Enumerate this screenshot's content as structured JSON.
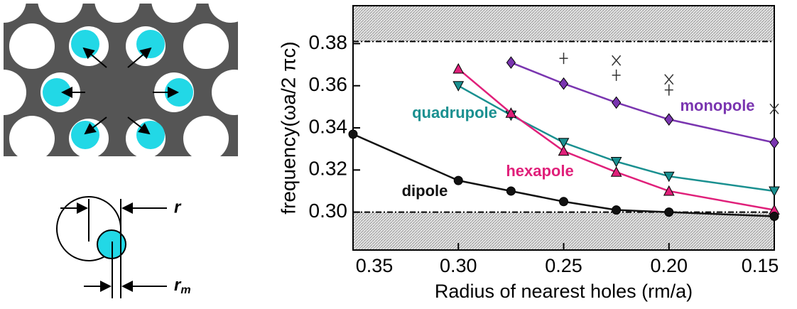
{
  "diagram": {
    "r_label": "r",
    "rm_label": "r",
    "rm_sub": "m"
  },
  "chart_data": {
    "type": "line",
    "xlabel": "Radius of nearest holes (rm/a)",
    "ylabel": "frequency(ωa/2 πc)",
    "xlim": [
      0.35,
      0.15
    ],
    "ylim": [
      0.282,
      0.398
    ],
    "xticks": [
      0.35,
      {
        "value": 0.3,
        "label": "0.30"
      },
      0.25,
      {
        "value": 0.2,
        "label": "0.20"
      },
      0.15
    ],
    "yticks": [
      {
        "value": 0.3,
        "label": "0.30"
      },
      0.32,
      0.34,
      0.36,
      0.38
    ],
    "gap_edges": [
      0.3,
      0.381
    ],
    "series": [
      {
        "name": "monopole",
        "color": "#7a35b0",
        "marker": "diamond",
        "x": [
          0.275,
          0.25,
          0.225,
          0.2,
          0.15
        ],
        "values": [
          0.371,
          0.361,
          0.352,
          0.344,
          0.333
        ]
      },
      {
        "name": "quadrupole",
        "color": "#1a9090",
        "marker": "tri-down",
        "x": [
          0.3,
          0.275,
          0.25,
          0.225,
          0.2,
          0.15
        ],
        "values": [
          0.36,
          0.346,
          0.333,
          0.324,
          0.317,
          0.31
        ]
      },
      {
        "name": "hexapole",
        "color": "#e0207a",
        "marker": "tri-up",
        "x": [
          0.3,
          0.275,
          0.25,
          0.225,
          0.2,
          0.15
        ],
        "values": [
          0.368,
          0.347,
          0.329,
          0.319,
          0.31,
          0.301
        ]
      },
      {
        "name": "dipole",
        "color": "#111111",
        "marker": "circle",
        "x": [
          0.35,
          0.3,
          0.275,
          0.25,
          0.225,
          0.2,
          0.15
        ],
        "values": [
          0.337,
          0.315,
          0.31,
          0.305,
          0.301,
          0.3,
          0.298
        ]
      },
      {
        "color": "#333333",
        "marker": "plus",
        "x": [
          0.25,
          0.225,
          0.2
        ],
        "values": [
          0.373,
          0.365,
          0.358
        ]
      },
      {
        "color": "#333333",
        "marker": "x",
        "x": [
          0.225,
          0.2,
          0.15
        ],
        "values": [
          0.372,
          0.363,
          0.349
        ]
      }
    ]
  }
}
